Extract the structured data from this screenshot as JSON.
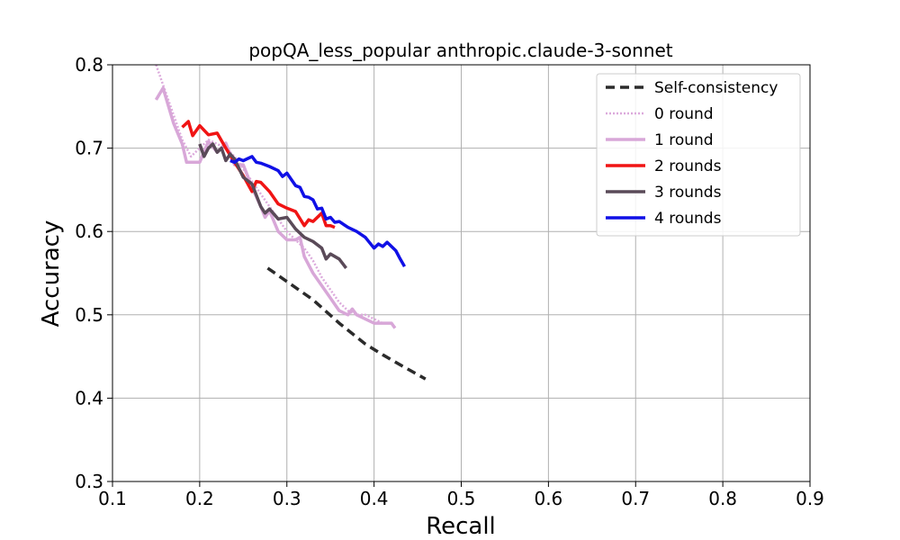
{
  "chart_data": {
    "type": "line",
    "title": "popQA_less_popular anthropic.claude-3-sonnet",
    "xlabel": "Recall",
    "ylabel": "Accuracy",
    "xlim": [
      0.1,
      0.9
    ],
    "ylim": [
      0.3,
      0.8
    ],
    "xticks": [
      "0.1",
      "0.2",
      "0.3",
      "0.4",
      "0.5",
      "0.6",
      "0.7",
      "0.8",
      "0.9"
    ],
    "yticks": [
      "0.3",
      "0.4",
      "0.5",
      "0.6",
      "0.7",
      "0.8"
    ],
    "grid": true,
    "legend_position": "top-right",
    "series": [
      {
        "name": "Self-consistency",
        "color": "#2b2b2b",
        "dash": "dashed",
        "x": [
          0.278,
          0.3,
          0.33,
          0.36,
          0.39,
          0.41,
          0.43,
          0.459
        ],
        "y": [
          0.556,
          0.54,
          0.518,
          0.49,
          0.465,
          0.452,
          0.44,
          0.423
        ]
      },
      {
        "name": "0 round",
        "color": "#dcaadc",
        "dash": "dotted",
        "x": [
          0.15,
          0.16,
          0.17,
          0.18,
          0.19,
          0.2,
          0.21,
          0.22,
          0.23,
          0.24,
          0.25,
          0.26,
          0.27,
          0.28,
          0.29,
          0.3,
          0.31,
          0.32,
          0.33,
          0.34,
          0.35,
          0.36,
          0.37,
          0.38,
          0.39,
          0.4,
          0.41,
          0.42,
          0.424
        ],
        "y": [
          0.8,
          0.77,
          0.74,
          0.71,
          0.69,
          0.7,
          0.71,
          0.705,
          0.7,
          0.69,
          0.675,
          0.66,
          0.645,
          0.63,
          0.615,
          0.6,
          0.59,
          0.58,
          0.565,
          0.545,
          0.53,
          0.515,
          0.505,
          0.5,
          0.5,
          0.495,
          0.49,
          0.49,
          0.485
        ]
      },
      {
        "name": "1 round",
        "color": "#d8a7d8",
        "dash": "solid",
        "x": [
          0.15,
          0.158,
          0.17,
          0.18,
          0.185,
          0.2,
          0.21,
          0.22,
          0.23,
          0.24,
          0.25,
          0.26,
          0.27,
          0.275,
          0.28,
          0.29,
          0.3,
          0.31,
          0.315,
          0.32,
          0.33,
          0.34,
          0.35,
          0.36,
          0.37,
          0.375,
          0.38,
          0.39,
          0.4,
          0.41,
          0.42,
          0.424
        ],
        "y": [
          0.758,
          0.772,
          0.73,
          0.705,
          0.683,
          0.683,
          0.708,
          0.695,
          0.706,
          0.68,
          0.68,
          0.653,
          0.63,
          0.617,
          0.625,
          0.6,
          0.59,
          0.59,
          0.593,
          0.57,
          0.55,
          0.535,
          0.52,
          0.505,
          0.5,
          0.507,
          0.5,
          0.495,
          0.49,
          0.49,
          0.49,
          0.484
        ]
      },
      {
        "name": "2 rounds",
        "color": "#f01414",
        "dash": "solid",
        "x": [
          0.18,
          0.187,
          0.192,
          0.2,
          0.21,
          0.22,
          0.23,
          0.24,
          0.25,
          0.26,
          0.265,
          0.27,
          0.28,
          0.29,
          0.3,
          0.31,
          0.32,
          0.325,
          0.33,
          0.34,
          0.345,
          0.35,
          0.355
        ],
        "y": [
          0.725,
          0.732,
          0.715,
          0.727,
          0.716,
          0.718,
          0.7,
          0.683,
          0.667,
          0.648,
          0.66,
          0.659,
          0.648,
          0.633,
          0.628,
          0.624,
          0.607,
          0.614,
          0.612,
          0.622,
          0.607,
          0.607,
          0.605
        ]
      },
      {
        "name": "3 rounds",
        "color": "#5a4a58",
        "dash": "solid",
        "x": [
          0.2,
          0.205,
          0.21,
          0.215,
          0.22,
          0.225,
          0.23,
          0.235,
          0.24,
          0.25,
          0.26,
          0.27,
          0.275,
          0.28,
          0.29,
          0.3,
          0.31,
          0.32,
          0.33,
          0.34,
          0.345,
          0.35,
          0.36,
          0.368
        ],
        "y": [
          0.705,
          0.69,
          0.7,
          0.705,
          0.695,
          0.7,
          0.685,
          0.693,
          0.687,
          0.665,
          0.657,
          0.63,
          0.622,
          0.627,
          0.615,
          0.617,
          0.603,
          0.593,
          0.588,
          0.58,
          0.567,
          0.573,
          0.567,
          0.556
        ]
      },
      {
        "name": "4 rounds",
        "color": "#1010e6",
        "dash": "solid",
        "x": [
          0.235,
          0.24,
          0.245,
          0.25,
          0.26,
          0.265,
          0.27,
          0.28,
          0.29,
          0.295,
          0.3,
          0.31,
          0.315,
          0.32,
          0.325,
          0.33,
          0.335,
          0.34,
          0.345,
          0.35,
          0.355,
          0.36,
          0.37,
          0.38,
          0.39,
          0.4,
          0.405,
          0.41,
          0.415,
          0.42,
          0.425,
          0.43,
          0.435
        ],
        "y": [
          0.685,
          0.683,
          0.687,
          0.685,
          0.69,
          0.683,
          0.682,
          0.678,
          0.673,
          0.666,
          0.67,
          0.655,
          0.653,
          0.642,
          0.641,
          0.638,
          0.627,
          0.628,
          0.615,
          0.617,
          0.611,
          0.612,
          0.605,
          0.6,
          0.593,
          0.58,
          0.585,
          0.582,
          0.587,
          0.582,
          0.577,
          0.567,
          0.558
        ]
      }
    ]
  }
}
